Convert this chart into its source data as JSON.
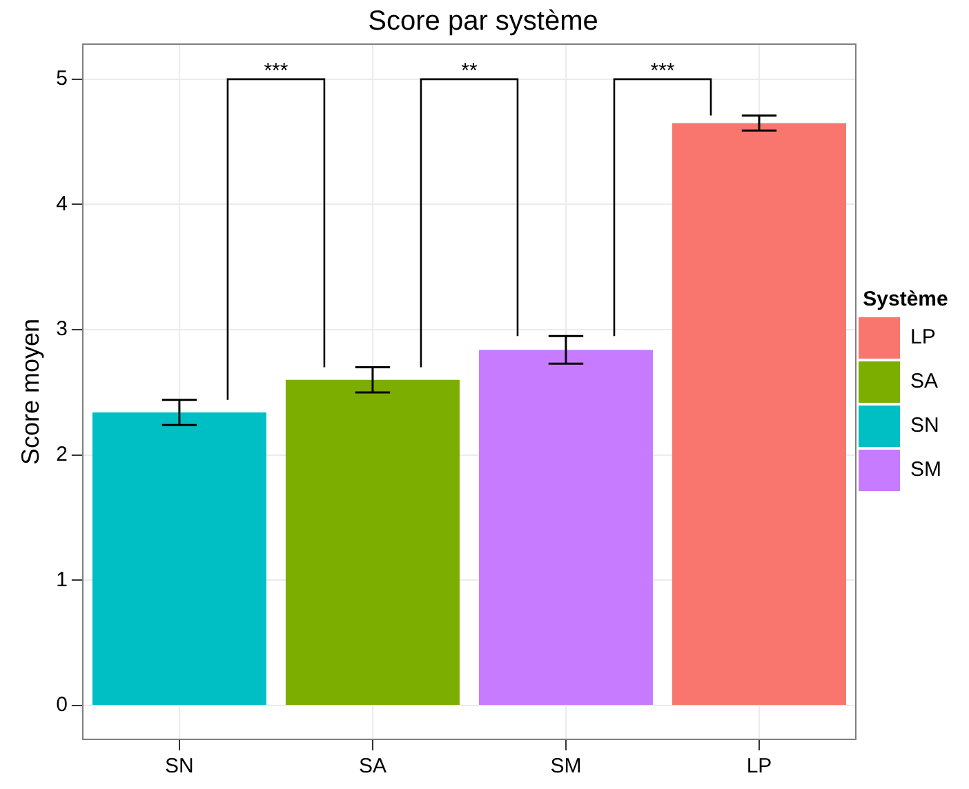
{
  "chart_data": {
    "type": "bar",
    "title": "Score par système",
    "ylabel": "Score moyen",
    "legend_title": "Système",
    "categories": [
      "SN",
      "SA",
      "SM",
      "LP"
    ],
    "series": [
      {
        "name": "LP",
        "color": "#f8766d",
        "values": [
          null,
          null,
          null,
          4.65
        ],
        "errors": [
          null,
          null,
          null,
          0.06
        ]
      },
      {
        "name": "SA",
        "color": "#7cae00",
        "values": [
          null,
          2.6,
          null,
          null
        ],
        "errors": [
          null,
          0.1,
          null,
          null
        ]
      },
      {
        "name": "SN",
        "color": "#00bfc4",
        "values": [
          2.34,
          null,
          null,
          null
        ],
        "errors": [
          0.1,
          null,
          null,
          null
        ]
      },
      {
        "name": "SM",
        "color": "#c77cff",
        "values": [
          null,
          null,
          2.84,
          null
        ],
        "errors": [
          null,
          null,
          0.11,
          null
        ]
      }
    ],
    "ylim": [
      -0.27,
      5.28
    ],
    "yticks": [
      0,
      1,
      2,
      3,
      4,
      5
    ],
    "grid": true,
    "legend": "right",
    "annotations": [
      "***",
      "**",
      "***"
    ]
  }
}
